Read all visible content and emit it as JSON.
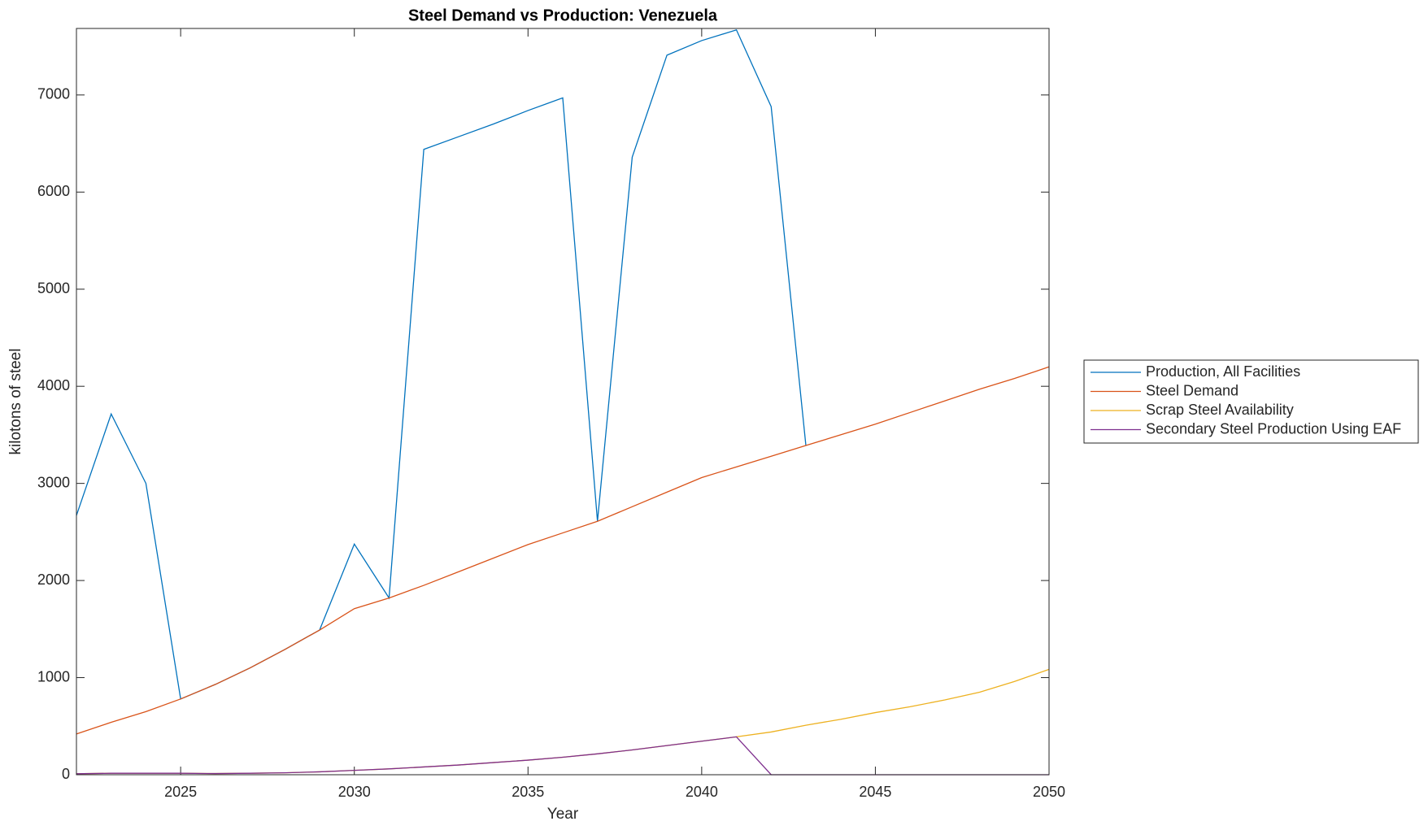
{
  "chart_data": {
    "type": "line",
    "title": "Steel Demand vs Production: Venezuela",
    "x_label": "Year",
    "y_label": "kilotons of steel",
    "x": [
      2022,
      2023,
      2024,
      2025,
      2026,
      2027,
      2028,
      2029,
      2030,
      2031,
      2032,
      2033,
      2034,
      2035,
      2036,
      2037,
      2038,
      2039,
      2040,
      2041,
      2042,
      2043,
      2044,
      2045,
      2046,
      2047,
      2048,
      2049,
      2050
    ],
    "series": [
      {
        "name": "Production, All Facilities",
        "color": "#0072BD",
        "values": [
          2670,
          3715,
          3000,
          780,
          930,
          1100,
          1290,
          1490,
          2375,
          1820,
          6440,
          6570,
          6700,
          6840,
          6970,
          2610,
          6360,
          7410,
          7560,
          7670,
          6880,
          3390,
          null,
          null,
          null,
          null,
          null,
          null,
          null
        ]
      },
      {
        "name": "Steel Demand",
        "color": "#D95319",
        "values": [
          420,
          540,
          650,
          780,
          930,
          1100,
          1290,
          1490,
          1710,
          1820,
          1950,
          2090,
          2230,
          2370,
          2490,
          2610,
          2760,
          2910,
          3060,
          3170,
          3280,
          3390,
          3500,
          3610,
          3730,
          3850,
          3970,
          4080,
          4200
        ]
      },
      {
        "name": "Scrap Steel Availability",
        "color": "#EDB120",
        "values": [
          10,
          15,
          15,
          15,
          12,
          15,
          20,
          30,
          45,
          60,
          80,
          100,
          125,
          150,
          180,
          215,
          255,
          300,
          345,
          390,
          440,
          510,
          570,
          640,
          700,
          770,
          850,
          960,
          1085
        ]
      },
      {
        "name": "Secondary Steel Production Using EAF",
        "color": "#7E2F8E",
        "values": [
          10,
          15,
          15,
          15,
          12,
          15,
          20,
          30,
          45,
          60,
          80,
          100,
          125,
          150,
          180,
          215,
          255,
          300,
          345,
          390,
          0,
          0,
          0,
          0,
          0,
          0,
          0,
          0,
          0
        ]
      }
    ],
    "xlim": [
      2022,
      2050
    ],
    "xticks": [
      2025,
      2030,
      2035,
      2040,
      2045,
      2050
    ],
    "ylim": [
      0,
      7685
    ],
    "yticks": [
      0,
      1000,
      2000,
      3000,
      4000,
      5000,
      6000,
      7000
    ],
    "grid": false,
    "legend_position": "eastoutside"
  }
}
